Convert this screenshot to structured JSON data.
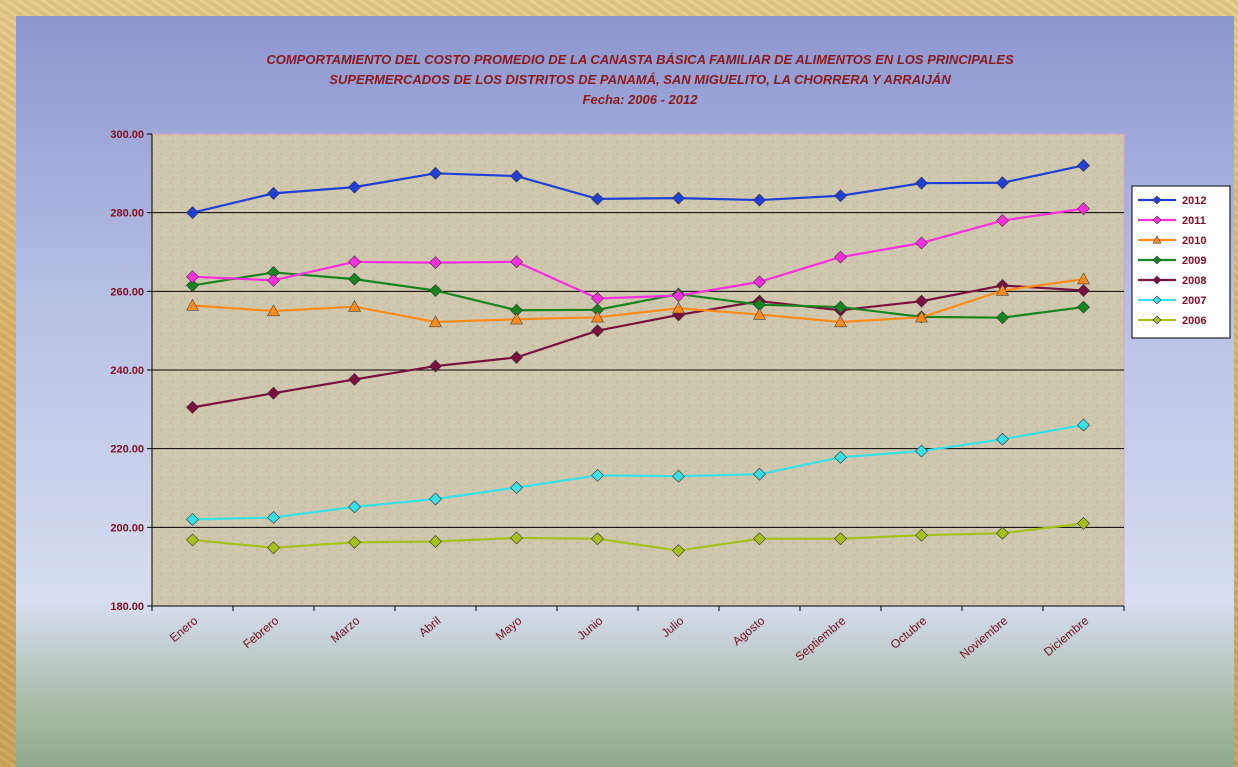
{
  "chart_data": {
    "type": "line",
    "title": [
      "COMPORTAMIENTO DEL COSTO PROMEDIO DE LA CANASTA BÁSICA FAMILIAR DE ALIMENTOS EN LOS PRINCIPALES",
      "SUPERMERCADOS DE LOS DISTRITOS DE PANAMÁ, SAN MIGUELITO, LA CHORRERA Y ARRAIJÁN",
      "Fecha:  2006 - 2012"
    ],
    "xlabel": "",
    "ylabel": "",
    "ylim": [
      180,
      300
    ],
    "yticks": [
      "180.00",
      "200.00",
      "220.00",
      "240.00",
      "260.00",
      "280.00",
      "300.00"
    ],
    "grid": true,
    "legend_position": "right",
    "categories": [
      "Enero",
      "Febrero",
      "Marzo",
      "Abril",
      "Mayo",
      "Junio",
      "Julio",
      "Agosto",
      "Septiembre",
      "Octubre",
      "Noviembre",
      "Diciembre"
    ],
    "series": [
      {
        "name": "2012",
        "color": "#1f3fd6",
        "marker": "diamond",
        "values": [
          280.0,
          284.9,
          286.5,
          290.0,
          289.3,
          283.5,
          283.7,
          283.2,
          284.3,
          287.5,
          287.6,
          292.0
        ]
      },
      {
        "name": "2011",
        "color": "#ff2ee0",
        "marker": "diamond",
        "values": [
          263.7,
          262.8,
          267.5,
          267.3,
          267.5,
          258.2,
          258.9,
          262.4,
          268.7,
          272.3,
          278.0,
          281.0
        ]
      },
      {
        "name": "2010",
        "color": "#ff8c1a",
        "marker": "triangle",
        "values": [
          256.4,
          255.0,
          256.1,
          252.2,
          252.9,
          253.4,
          255.7,
          254.1,
          252.2,
          253.4,
          260.2,
          263.1
        ]
      },
      {
        "name": "2009",
        "color": "#17851f",
        "marker": "diamond",
        "values": [
          261.5,
          264.8,
          263.1,
          260.2,
          255.2,
          255.3,
          259.3,
          256.6,
          256.0,
          253.5,
          253.3,
          256.0
        ]
      },
      {
        "name": "2008",
        "color": "#7a1040",
        "marker": "diamond",
        "values": [
          230.5,
          234.1,
          237.6,
          241.0,
          243.2,
          250.0,
          254.0,
          257.5,
          255.2,
          257.5,
          261.5,
          260.2
        ]
      },
      {
        "name": "2007",
        "color": "#38e0e8",
        "marker": "diamond",
        "values": [
          202.0,
          202.5,
          205.2,
          207.2,
          210.1,
          213.2,
          213.0,
          213.5,
          217.8,
          219.4,
          222.4,
          226.0
        ]
      },
      {
        "name": "2006",
        "color": "#a6c21a",
        "marker": "diamond",
        "values": [
          196.8,
          194.8,
          196.2,
          196.4,
          197.3,
          197.1,
          194.1,
          197.1,
          197.1,
          198.0,
          198.5,
          201.0
        ]
      }
    ]
  }
}
